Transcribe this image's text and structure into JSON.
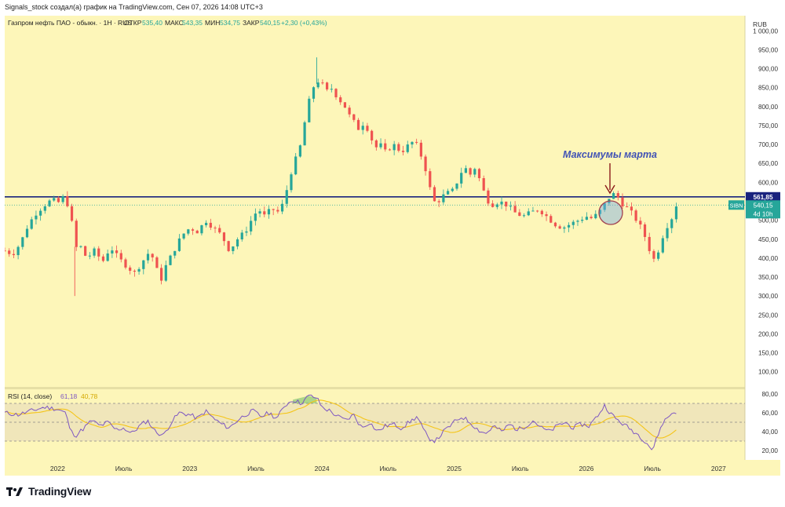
{
  "header": {
    "credit": "Signals_stock создал(а) график на TradingView.com, Сен 07, 2026 14:08 UTC+3"
  },
  "legend": {
    "symbol": "Газпром нефть ПАО - обыкн. · 1H · RUS",
    "open_label": "ОТКР",
    "open": "535,40",
    "high_label": "МАКС",
    "high": "543,35",
    "low_label": "МИН",
    "low": "534,75",
    "close_label": "ЗАКР",
    "close": "540,15",
    "change": "+2,30 (+0,43%)"
  },
  "currency": "RUB",
  "price_axis": {
    "ticks": [
      {
        "value": 1000,
        "label": "1 000,00"
      },
      {
        "value": 950,
        "label": "950,00"
      },
      {
        "value": 900,
        "label": "900,00"
      },
      {
        "value": 850,
        "label": "850,00"
      },
      {
        "value": 800,
        "label": "800,00"
      },
      {
        "value": 750,
        "label": "750,00"
      },
      {
        "value": 700,
        "label": "700,00"
      },
      {
        "value": 650,
        "label": "650,00"
      },
      {
        "value": 600,
        "label": "600,00"
      },
      {
        "value": 500,
        "label": "500,00"
      },
      {
        "value": 450,
        "label": "450,00"
      },
      {
        "value": 400,
        "label": "400,00"
      },
      {
        "value": 350,
        "label": "350,00"
      },
      {
        "value": 300,
        "label": "300,00"
      },
      {
        "value": 250,
        "label": "250,00"
      },
      {
        "value": 200,
        "label": "200,00"
      },
      {
        "value": 150,
        "label": "150,00"
      },
      {
        "value": 100,
        "label": "100,00"
      }
    ],
    "level_label": "561,85",
    "ticker_label": "SIBN",
    "price_label": "540,15",
    "countdown_label": "4d 10h"
  },
  "annotation": {
    "text": "Максимумы марта"
  },
  "rsi": {
    "label": "RSI (14, close)",
    "value1": "61,18",
    "value2": "40,78",
    "ticks": [
      {
        "value": 80,
        "label": "80,00"
      },
      {
        "value": 60,
        "label": "60,00"
      },
      {
        "value": 40,
        "label": "40,00"
      },
      {
        "value": 20,
        "label": "20,00"
      }
    ]
  },
  "time_axis": {
    "labels": [
      {
        "t": 2022.0,
        "label": "2022"
      },
      {
        "t": 2022.5,
        "label": "Июль"
      },
      {
        "t": 2023.0,
        "label": "2023"
      },
      {
        "t": 2023.5,
        "label": "Июль"
      },
      {
        "t": 2024.0,
        "label": "2024"
      },
      {
        "t": 2024.5,
        "label": "Июль"
      },
      {
        "t": 2025.0,
        "label": "2025"
      },
      {
        "t": 2025.5,
        "label": "Июль"
      },
      {
        "t": 2026.0,
        "label": "2026"
      },
      {
        "t": 2026.5,
        "label": "Июль"
      },
      {
        "t": 2027.0,
        "label": "2027"
      }
    ]
  },
  "brand": {
    "name": "TradingView"
  },
  "colors": {
    "background": "#fdf6b9",
    "up": "#26a69a",
    "down": "#ef5350",
    "level_line": "#1a237e",
    "rsi_line": "#7e57c2",
    "rsi_ma": "#f5c518",
    "annotation": "#3f51b5",
    "arrow": "#8b1a1a",
    "circle": "#a04050"
  },
  "chart_data": {
    "type": "candlestick",
    "y_unit": "RUB",
    "ylim": [
      60,
      1040
    ],
    "xlim": [
      2021.6,
      2027.2
    ],
    "horizontal_level": 561.85,
    "last_price": 540.15,
    "price_path": [
      [
        2021.6,
        420
      ],
      [
        2021.66,
        410
      ],
      [
        2021.72,
        440
      ],
      [
        2021.78,
        490
      ],
      [
        2021.84,
        520
      ],
      [
        2021.9,
        540
      ],
      [
        2021.96,
        555
      ],
      [
        2022.0,
        545
      ],
      [
        2022.04,
        560
      ],
      [
        2022.08,
        540
      ],
      [
        2022.1,
        520
      ],
      [
        2022.13,
        420
      ],
      [
        2022.16,
        440
      ],
      [
        2022.22,
        400
      ],
      [
        2022.28,
        420
      ],
      [
        2022.34,
        390
      ],
      [
        2022.4,
        430
      ],
      [
        2022.46,
        400
      ],
      [
        2022.52,
        380
      ],
      [
        2022.58,
        360
      ],
      [
        2022.64,
        390
      ],
      [
        2022.7,
        420
      ],
      [
        2022.74,
        380
      ],
      [
        2022.78,
        340
      ],
      [
        2022.82,
        380
      ],
      [
        2022.88,
        420
      ],
      [
        2022.94,
        460
      ],
      [
        2023.0,
        480
      ],
      [
        2023.06,
        470
      ],
      [
        2023.12,
        500
      ],
      [
        2023.18,
        480
      ],
      [
        2023.24,
        460
      ],
      [
        2023.3,
        420
      ],
      [
        2023.36,
        450
      ],
      [
        2023.42,
        470
      ],
      [
        2023.48,
        510
      ],
      [
        2023.52,
        530
      ],
      [
        2023.56,
        510
      ],
      [
        2023.62,
        530
      ],
      [
        2023.68,
        520
      ],
      [
        2023.72,
        560
      ],
      [
        2023.76,
        620
      ],
      [
        2023.8,
        660
      ],
      [
        2023.84,
        700
      ],
      [
        2023.88,
        780
      ],
      [
        2023.92,
        840
      ],
      [
        2023.96,
        870
      ],
      [
        2024.0,
        860
      ],
      [
        2024.04,
        840
      ],
      [
        2024.08,
        850
      ],
      [
        2024.12,
        820
      ],
      [
        2024.16,
        810
      ],
      [
        2024.2,
        780
      ],
      [
        2024.24,
        760
      ],
      [
        2024.28,
        740
      ],
      [
        2024.32,
        760
      ],
      [
        2024.36,
        730
      ],
      [
        2024.4,
        690
      ],
      [
        2024.44,
        700
      ],
      [
        2024.48,
        680
      ],
      [
        2024.54,
        700
      ],
      [
        2024.6,
        680
      ],
      [
        2024.66,
        700
      ],
      [
        2024.7,
        710
      ],
      [
        2024.74,
        680
      ],
      [
        2024.78,
        640
      ],
      [
        2024.82,
        580
      ],
      [
        2024.86,
        540
      ],
      [
        2024.9,
        560
      ],
      [
        2024.94,
        570
      ],
      [
        2025.0,
        580
      ],
      [
        2025.04,
        620
      ],
      [
        2025.08,
        640
      ],
      [
        2025.12,
        620
      ],
      [
        2025.16,
        640
      ],
      [
        2025.2,
        600
      ],
      [
        2025.24,
        560
      ],
      [
        2025.28,
        540
      ],
      [
        2025.34,
        550
      ],
      [
        2025.4,
        540
      ],
      [
        2025.46,
        520
      ],
      [
        2025.52,
        510
      ],
      [
        2025.58,
        520
      ],
      [
        2025.64,
        530
      ],
      [
        2025.7,
        510
      ],
      [
        2025.76,
        490
      ],
      [
        2025.82,
        480
      ],
      [
        2025.88,
        490
      ],
      [
        2025.94,
        500
      ],
      [
        2026.0,
        510
      ],
      [
        2026.04,
        505
      ],
      [
        2026.08,
        515
      ],
      [
        2026.12,
        530
      ],
      [
        2026.16,
        555
      ],
      [
        2026.2,
        570
      ],
      [
        2026.24,
        560
      ],
      [
        2026.28,
        540
      ],
      [
        2026.32,
        530
      ],
      [
        2026.36,
        510
      ],
      [
        2026.4,
        490
      ],
      [
        2026.44,
        460
      ],
      [
        2026.48,
        420
      ],
      [
        2026.52,
        390
      ],
      [
        2026.56,
        440
      ],
      [
        2026.6,
        480
      ],
      [
        2026.64,
        500
      ],
      [
        2026.68,
        540
      ]
    ],
    "rsi_ylim": [
      10,
      85
    ],
    "rsi_path": [
      [
        2021.6,
        60
      ],
      [
        2021.7,
        58
      ],
      [
        2021.8,
        62
      ],
      [
        2021.9,
        66
      ],
      [
        2022.0,
        64
      ],
      [
        2022.06,
        60
      ],
      [
        2022.1,
        40
      ],
      [
        2022.14,
        36
      ],
      [
        2022.2,
        44
      ],
      [
        2022.26,
        52
      ],
      [
        2022.32,
        46
      ],
      [
        2022.38,
        50
      ],
      [
        2022.44,
        42
      ],
      [
        2022.5,
        44
      ],
      [
        2022.56,
        38
      ],
      [
        2022.62,
        46
      ],
      [
        2022.68,
        52
      ],
      [
        2022.74,
        40
      ],
      [
        2022.8,
        36
      ],
      [
        2022.86,
        50
      ],
      [
        2022.92,
        60
      ],
      [
        2023.0,
        58
      ],
      [
        2023.06,
        54
      ],
      [
        2023.12,
        62
      ],
      [
        2023.18,
        54
      ],
      [
        2023.24,
        48
      ],
      [
        2023.3,
        44
      ],
      [
        2023.36,
        52
      ],
      [
        2023.42,
        58
      ],
      [
        2023.48,
        62
      ],
      [
        2023.54,
        56
      ],
      [
        2023.6,
        60
      ],
      [
        2023.66,
        54
      ],
      [
        2023.72,
        68
      ],
      [
        2023.78,
        74
      ],
      [
        2023.84,
        70
      ],
      [
        2023.9,
        78
      ],
      [
        2023.96,
        76
      ],
      [
        2024.0,
        66
      ],
      [
        2024.06,
        62
      ],
      [
        2024.12,
        56
      ],
      [
        2024.18,
        52
      ],
      [
        2024.24,
        58
      ],
      [
        2024.3,
        44
      ],
      [
        2024.36,
        50
      ],
      [
        2024.42,
        40
      ],
      [
        2024.48,
        46
      ],
      [
        2024.54,
        48
      ],
      [
        2024.6,
        44
      ],
      [
        2024.66,
        50
      ],
      [
        2024.72,
        56
      ],
      [
        2024.76,
        44
      ],
      [
        2024.8,
        34
      ],
      [
        2024.86,
        30
      ],
      [
        2024.92,
        40
      ],
      [
        2025.0,
        50
      ],
      [
        2025.06,
        56
      ],
      [
        2025.12,
        50
      ],
      [
        2025.18,
        42
      ],
      [
        2025.24,
        38
      ],
      [
        2025.3,
        46
      ],
      [
        2025.36,
        40
      ],
      [
        2025.42,
        48
      ],
      [
        2025.48,
        42
      ],
      [
        2025.54,
        46
      ],
      [
        2025.6,
        52
      ],
      [
        2025.66,
        44
      ],
      [
        2025.72,
        40
      ],
      [
        2025.78,
        46
      ],
      [
        2025.84,
        50
      ],
      [
        2025.9,
        44
      ],
      [
        2025.96,
        48
      ],
      [
        2026.02,
        46
      ],
      [
        2026.08,
        56
      ],
      [
        2026.14,
        68
      ],
      [
        2026.18,
        60
      ],
      [
        2026.22,
        54
      ],
      [
        2026.28,
        48
      ],
      [
        2026.34,
        42
      ],
      [
        2026.4,
        36
      ],
      [
        2026.46,
        28
      ],
      [
        2026.5,
        20
      ],
      [
        2026.54,
        36
      ],
      [
        2026.58,
        50
      ],
      [
        2026.62,
        56
      ],
      [
        2026.66,
        61
      ]
    ],
    "rsi_bands": [
      70,
      50,
      30
    ]
  }
}
